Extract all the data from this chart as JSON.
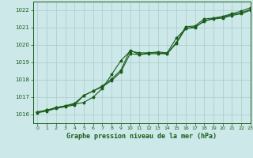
{
  "title": "Graphe pression niveau de la mer (hPa)",
  "bg_color": "#cce8e8",
  "grid_color": "#b0d0d0",
  "line_color": "#1a5c1a",
  "xlim": [
    -0.5,
    23
  ],
  "ylim": [
    1015.5,
    1022.5
  ],
  "yticks": [
    1016,
    1017,
    1018,
    1019,
    1020,
    1021,
    1022
  ],
  "xticks": [
    0,
    1,
    2,
    3,
    4,
    5,
    6,
    7,
    8,
    9,
    10,
    11,
    12,
    13,
    14,
    15,
    16,
    17,
    18,
    19,
    20,
    21,
    22,
    23
  ],
  "series1_x": [
    0,
    1,
    2,
    3,
    4,
    5,
    6,
    7,
    8,
    9,
    10,
    11,
    12,
    13,
    14,
    15,
    16,
    17,
    18,
    19,
    20,
    21,
    22,
    23
  ],
  "series1": [
    1016.15,
    1016.25,
    1016.4,
    1016.5,
    1016.6,
    1016.7,
    1017.0,
    1017.5,
    1018.3,
    1019.1,
    1019.65,
    1019.55,
    1019.55,
    1019.6,
    1019.55,
    1020.4,
    1020.95,
    1021.05,
    1021.35,
    1021.55,
    1021.65,
    1021.8,
    1021.95,
    1022.15
  ],
  "series2_x": [
    0,
    1,
    2,
    3,
    4,
    5,
    6,
    7,
    8,
    9,
    10,
    11,
    12,
    13,
    14,
    15,
    16,
    17,
    18,
    19,
    20,
    21,
    22,
    23
  ],
  "series2": [
    1016.15,
    1016.25,
    1016.4,
    1016.5,
    1016.65,
    1017.1,
    1017.35,
    1017.65,
    1018.05,
    1018.55,
    1019.7,
    1019.45,
    1019.55,
    1019.55,
    1019.5,
    1020.15,
    1021.05,
    1021.1,
    1021.5,
    1021.55,
    1021.6,
    1021.75,
    1021.85,
    1022.05
  ],
  "series3_x": [
    0,
    1,
    2,
    3,
    4,
    5,
    6,
    7,
    8,
    9,
    10,
    11,
    12,
    13,
    14,
    15,
    16,
    17,
    18,
    19,
    20,
    21,
    22,
    23
  ],
  "series3": [
    1016.1,
    1016.2,
    1016.35,
    1016.45,
    1016.55,
    1017.1,
    1017.35,
    1017.6,
    1017.95,
    1018.45,
    1019.5,
    1019.45,
    1019.5,
    1019.5,
    1019.5,
    1020.1,
    1020.95,
    1021.0,
    1021.4,
    1021.5,
    1021.55,
    1021.7,
    1021.8,
    1022.0
  ]
}
